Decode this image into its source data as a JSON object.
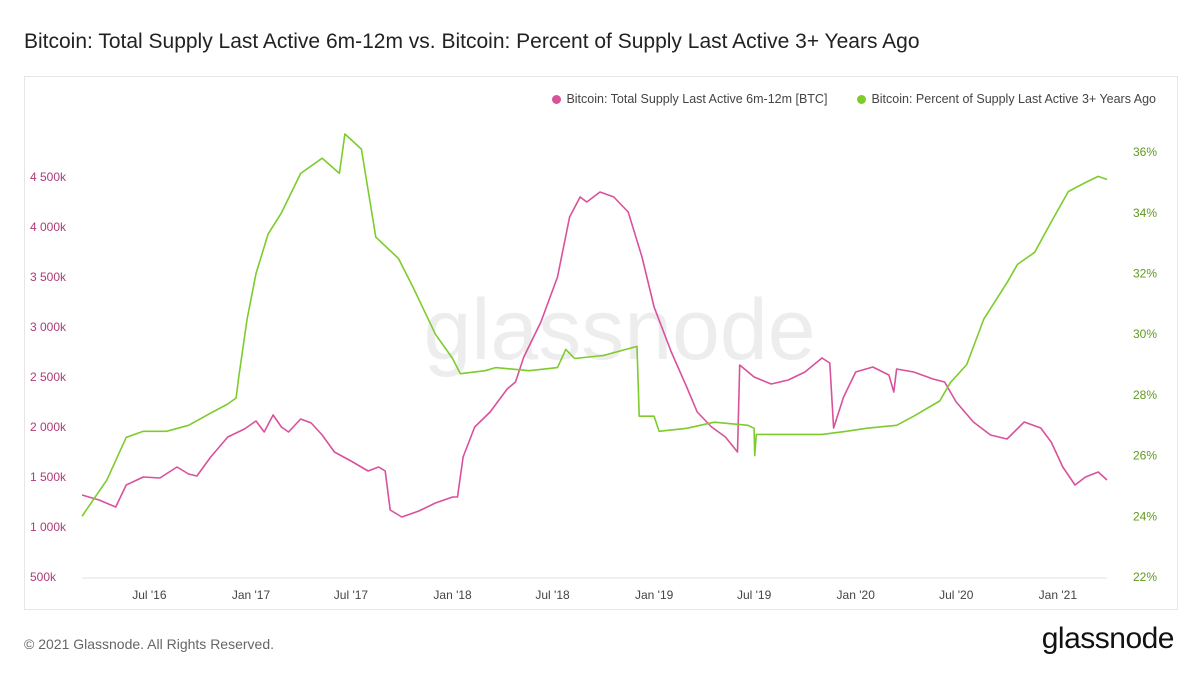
{
  "title": "Bitcoin: Total Supply Last Active 6m-12m vs. Bitcoin: Percent of Supply Last Active 3+ Years Ago",
  "footer": "© 2021 Glassnode. All Rights Reserved.",
  "brand": "glassnode",
  "watermark": "glassnode",
  "colors": {
    "series1": "#d9519b",
    "series2": "#7ccc2c",
    "axis_left": "#b03a78",
    "axis_right": "#5f9a1e"
  },
  "chart_data": {
    "type": "line",
    "x_ticks": [
      "Jul '16",
      "Jan '17",
      "Jul '17",
      "Jan '18",
      "Jul '18",
      "Jan '19",
      "Jul '19",
      "Jan '20",
      "Jul '20",
      "Jan '21"
    ],
    "x_tick_dates": [
      "2016-07-01",
      "2017-01-01",
      "2017-07-01",
      "2018-01-01",
      "2018-07-01",
      "2019-01-01",
      "2019-07-01",
      "2020-01-01",
      "2020-07-01",
      "2021-01-01"
    ],
    "x_range": [
      "2016-03-01",
      "2021-03-31"
    ],
    "y_left": {
      "ticks": [
        "500k",
        "1 000k",
        "1 500k",
        "2 000k",
        "2 500k",
        "3 000k",
        "3 500k",
        "4 000k",
        "4 500k"
      ],
      "tick_values": [
        500000,
        1000000,
        1500000,
        2000000,
        2500000,
        3000000,
        3500000,
        4000000,
        4500000
      ],
      "range": [
        500000,
        4900000
      ]
    },
    "y_right": {
      "ticks": [
        "22%",
        "24%",
        "26%",
        "28%",
        "30%",
        "32%",
        "34%",
        "36%"
      ],
      "tick_values": [
        22,
        24,
        26,
        28,
        30,
        32,
        34,
        36
      ],
      "range": [
        22,
        36.5
      ]
    },
    "legend_position": "top-right",
    "series": [
      {
        "name": "Bitcoin: Total Supply Last Active 6m-12m [BTC]",
        "axis": "left",
        "points": [
          [
            "2016-03-01",
            1320000
          ],
          [
            "2016-04-01",
            1270000
          ],
          [
            "2016-05-01",
            1200000
          ],
          [
            "2016-05-20",
            1420000
          ],
          [
            "2016-06-20",
            1500000
          ],
          [
            "2016-07-20",
            1490000
          ],
          [
            "2016-08-20",
            1600000
          ],
          [
            "2016-09-10",
            1530000
          ],
          [
            "2016-09-25",
            1510000
          ],
          [
            "2016-10-20",
            1700000
          ],
          [
            "2016-11-20",
            1900000
          ],
          [
            "2016-12-20",
            1980000
          ],
          [
            "2017-01-10",
            2060000
          ],
          [
            "2017-01-25",
            1950000
          ],
          [
            "2017-02-10",
            2120000
          ],
          [
            "2017-02-25",
            2000000
          ],
          [
            "2017-03-10",
            1950000
          ],
          [
            "2017-04-01",
            2080000
          ],
          [
            "2017-04-20",
            2040000
          ],
          [
            "2017-05-10",
            1920000
          ],
          [
            "2017-06-01",
            1750000
          ],
          [
            "2017-07-01",
            1660000
          ],
          [
            "2017-08-01",
            1560000
          ],
          [
            "2017-08-20",
            1600000
          ],
          [
            "2017-09-01",
            1560000
          ],
          [
            "2017-09-10",
            1170000
          ],
          [
            "2017-10-01",
            1100000
          ],
          [
            "2017-11-01",
            1160000
          ],
          [
            "2017-12-01",
            1240000
          ],
          [
            "2018-01-01",
            1300000
          ],
          [
            "2018-01-10",
            1300000
          ],
          [
            "2018-01-20",
            1700000
          ],
          [
            "2018-02-10",
            2000000
          ],
          [
            "2018-03-10",
            2150000
          ],
          [
            "2018-04-10",
            2380000
          ],
          [
            "2018-04-25",
            2450000
          ],
          [
            "2018-05-10",
            2700000
          ],
          [
            "2018-06-10",
            3050000
          ],
          [
            "2018-07-10",
            3500000
          ],
          [
            "2018-08-01",
            4100000
          ],
          [
            "2018-08-20",
            4300000
          ],
          [
            "2018-09-01",
            4250000
          ],
          [
            "2018-09-25",
            4350000
          ],
          [
            "2018-10-20",
            4300000
          ],
          [
            "2018-11-15",
            4150000
          ],
          [
            "2018-12-10",
            3700000
          ],
          [
            "2019-01-01",
            3200000
          ],
          [
            "2019-02-01",
            2750000
          ],
          [
            "2019-03-01",
            2400000
          ],
          [
            "2019-03-20",
            2150000
          ],
          [
            "2019-04-15",
            2000000
          ],
          [
            "2019-05-10",
            1900000
          ],
          [
            "2019-06-01",
            1750000
          ],
          [
            "2019-06-05",
            2620000
          ],
          [
            "2019-07-01",
            2500000
          ],
          [
            "2019-08-01",
            2430000
          ],
          [
            "2019-09-01",
            2470000
          ],
          [
            "2019-10-01",
            2550000
          ],
          [
            "2019-11-01",
            2690000
          ],
          [
            "2019-11-15",
            2640000
          ],
          [
            "2019-11-22",
            1990000
          ],
          [
            "2019-12-10",
            2300000
          ],
          [
            "2020-01-01",
            2550000
          ],
          [
            "2020-02-01",
            2600000
          ],
          [
            "2020-03-01",
            2520000
          ],
          [
            "2020-03-10",
            2350000
          ],
          [
            "2020-03-15",
            2580000
          ],
          [
            "2020-04-15",
            2550000
          ],
          [
            "2020-05-20",
            2480000
          ],
          [
            "2020-06-10",
            2450000
          ],
          [
            "2020-07-01",
            2250000
          ],
          [
            "2020-08-01",
            2050000
          ],
          [
            "2020-09-01",
            1920000
          ],
          [
            "2020-10-01",
            1880000
          ],
          [
            "2020-11-01",
            2050000
          ],
          [
            "2020-12-01",
            1990000
          ],
          [
            "2020-12-20",
            1850000
          ],
          [
            "2021-01-10",
            1600000
          ],
          [
            "2021-02-01",
            1420000
          ],
          [
            "2021-02-20",
            1500000
          ],
          [
            "2021-03-15",
            1550000
          ],
          [
            "2021-03-31",
            1470000
          ]
        ]
      },
      {
        "name": "Bitcoin: Percent of Supply Last Active 3+ Years Ago",
        "axis": "right",
        "points": [
          [
            "2016-03-01",
            24.0
          ],
          [
            "2016-04-15",
            25.2
          ],
          [
            "2016-05-20",
            26.6
          ],
          [
            "2016-06-20",
            26.8
          ],
          [
            "2016-08-01",
            26.8
          ],
          [
            "2016-09-10",
            27.0
          ],
          [
            "2016-10-20",
            27.4
          ],
          [
            "2016-11-20",
            27.7
          ],
          [
            "2016-12-05",
            27.9
          ],
          [
            "2016-12-10",
            28.6
          ],
          [
            "2016-12-25",
            30.5
          ],
          [
            "2017-01-10",
            32.0
          ],
          [
            "2017-02-01",
            33.3
          ],
          [
            "2017-02-25",
            34.0
          ],
          [
            "2017-04-01",
            35.3
          ],
          [
            "2017-05-10",
            35.8
          ],
          [
            "2017-06-10",
            35.3
          ],
          [
            "2017-06-20",
            36.6
          ],
          [
            "2017-07-20",
            36.1
          ],
          [
            "2017-08-15",
            33.2
          ],
          [
            "2017-09-25",
            32.5
          ],
          [
            "2017-10-20",
            31.6
          ],
          [
            "2017-12-01",
            30.0
          ],
          [
            "2018-01-01",
            29.2
          ],
          [
            "2018-01-15",
            28.7
          ],
          [
            "2018-03-01",
            28.8
          ],
          [
            "2018-03-20",
            28.9
          ],
          [
            "2018-05-20",
            28.8
          ],
          [
            "2018-07-10",
            28.9
          ],
          [
            "2018-07-25",
            29.5
          ],
          [
            "2018-08-10",
            29.2
          ],
          [
            "2018-10-01",
            29.3
          ],
          [
            "2018-12-01",
            29.6
          ],
          [
            "2018-12-05",
            27.3
          ],
          [
            "2019-01-01",
            27.3
          ],
          [
            "2019-01-10",
            26.8
          ],
          [
            "2019-03-01",
            26.9
          ],
          [
            "2019-04-20",
            27.1
          ],
          [
            "2019-06-20",
            27.0
          ],
          [
            "2019-07-01",
            26.9
          ],
          [
            "2019-07-02",
            26.0
          ],
          [
            "2019-07-05",
            26.7
          ],
          [
            "2019-09-01",
            26.7
          ],
          [
            "2019-11-01",
            26.7
          ],
          [
            "2019-12-15",
            26.8
          ],
          [
            "2020-01-20",
            26.9
          ],
          [
            "2020-03-15",
            27.0
          ],
          [
            "2020-04-15",
            27.3
          ],
          [
            "2020-06-01",
            27.8
          ],
          [
            "2020-06-20",
            28.4
          ],
          [
            "2020-07-20",
            29.0
          ],
          [
            "2020-08-20",
            30.5
          ],
          [
            "2020-10-01",
            31.7
          ],
          [
            "2020-10-20",
            32.3
          ],
          [
            "2020-11-20",
            32.7
          ],
          [
            "2020-12-20",
            33.7
          ],
          [
            "2021-01-20",
            34.7
          ],
          [
            "2021-02-20",
            35.0
          ],
          [
            "2021-03-15",
            35.2
          ],
          [
            "2021-03-31",
            35.1
          ]
        ]
      }
    ]
  }
}
